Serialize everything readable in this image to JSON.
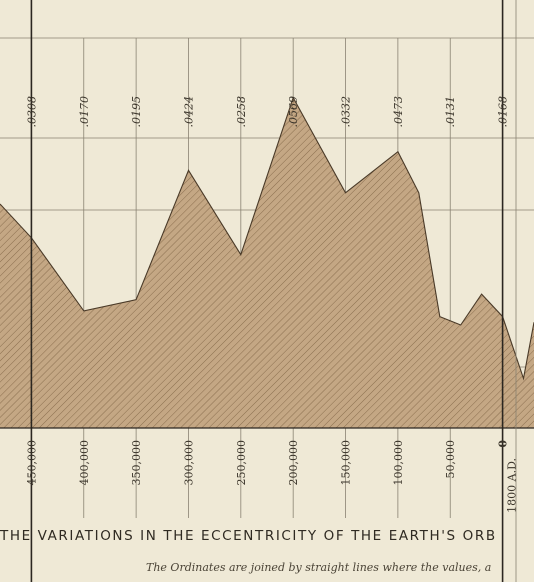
{
  "chart_data": {
    "type": "area",
    "title": "THE VARIATIONS IN THE ECCENTRICITY OF THE EARTH'S ORB",
    "subtitle": "The Ordinates are joined by straight lines where the values, a",
    "x_tick_labels": [
      "450,000",
      "400,000",
      "350,000",
      "300,000",
      "250,000",
      "200,000",
      "150,000",
      "100,000",
      "50,000",
      "0",
      "1800 A.D."
    ],
    "top_value_labels": [
      ".0308",
      ".0170",
      ".0195",
      ".0424",
      ".0258",
      ".0569",
      ".0332",
      ".0473",
      ".0131",
      ".0168"
    ],
    "x": [
      480000,
      450000,
      400000,
      350000,
      300000,
      250000,
      200000,
      150000,
      100000,
      80000,
      60000,
      40000,
      20000,
      0,
      -20000,
      -30000
    ],
    "values": [
      0.038,
      0.032,
      0.019,
      0.021,
      0.044,
      0.029,
      0.0569,
      0.04,
      0.0473,
      0.04,
      0.018,
      0.0165,
      0.022,
      0.018,
      0.007,
      0.017
    ],
    "xlim": [
      480000,
      -30000
    ],
    "ylim": [
      -0.0018,
      0.0675
    ],
    "grid": true,
    "fill_color": "#c4a784",
    "hatch_color": "#8a6e4e",
    "line_color": "#4a3a28"
  },
  "colors": {
    "paper": "#efe9d6",
    "grid": "#8a8272",
    "axis": "#2b2620"
  }
}
